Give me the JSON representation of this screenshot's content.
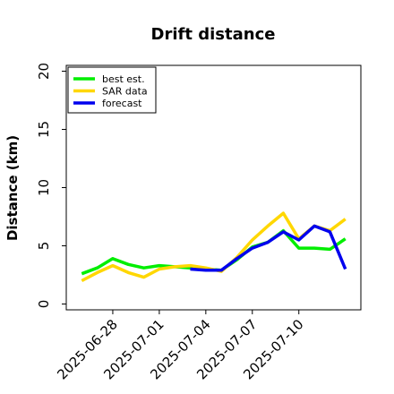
{
  "chart_data": {
    "type": "line",
    "title": "Drift distance",
    "xlabel": "",
    "ylabel": "Distance (km)",
    "xlim": [
      "2025-06-25",
      "2025-07-14"
    ],
    "ylim": [
      -0.5,
      20.5
    ],
    "grid": false,
    "legend_position": "top-left",
    "x_ticks": [
      "2025-06-28",
      "2025-07-01",
      "2025-07-04",
      "2025-07-07",
      "2025-07-10"
    ],
    "y_ticks": [
      0,
      5,
      10,
      15,
      20
    ],
    "series": [
      {
        "name": "best est.",
        "color": "#00ee00",
        "x": [
          "2025-06-26",
          "2025-06-27",
          "2025-06-28",
          "2025-06-29",
          "2025-06-30",
          "2025-07-01",
          "2025-07-02",
          "2025-07-03",
          "2025-07-04",
          "2025-07-05",
          "2025-07-06",
          "2025-07-07",
          "2025-07-08",
          "2025-07-09",
          "2025-07-10",
          "2025-07-11",
          "2025-07-12",
          "2025-07-13"
        ],
        "y": [
          2.6,
          3.1,
          3.9,
          3.4,
          3.1,
          3.3,
          3.2,
          3.1,
          3.0,
          2.9,
          3.8,
          4.9,
          5.3,
          6.3,
          4.8,
          4.8,
          4.7,
          5.6
        ]
      },
      {
        "name": "SAR data",
        "color": "#ffd700",
        "x": [
          "2025-06-26",
          "2025-06-27",
          "2025-06-28",
          "2025-06-29",
          "2025-06-30",
          "2025-07-01",
          "2025-07-02",
          "2025-07-03",
          "2025-07-04",
          "2025-07-05",
          "2025-07-06",
          "2025-07-07",
          "2025-07-08",
          "2025-07-09",
          "2025-07-10",
          "2025-07-11",
          "2025-07-12",
          "2025-07-13"
        ],
        "y": [
          2.0,
          2.7,
          3.3,
          2.7,
          2.3,
          3.0,
          3.2,
          3.3,
          3.1,
          2.8,
          4.0,
          5.5,
          6.7,
          7.8,
          5.6,
          6.7,
          6.3,
          7.3
        ]
      },
      {
        "name": "forecast",
        "color": "#0000ee",
        "x": [
          "2025-07-03",
          "2025-07-04",
          "2025-07-05",
          "2025-07-06",
          "2025-07-07",
          "2025-07-08",
          "2025-07-09",
          "2025-07-10",
          "2025-07-11",
          "2025-07-12",
          "2025-07-13"
        ],
        "y": [
          3.0,
          2.9,
          2.9,
          3.9,
          4.8,
          5.3,
          6.2,
          5.5,
          6.7,
          6.2,
          3.0
        ]
      }
    ]
  }
}
